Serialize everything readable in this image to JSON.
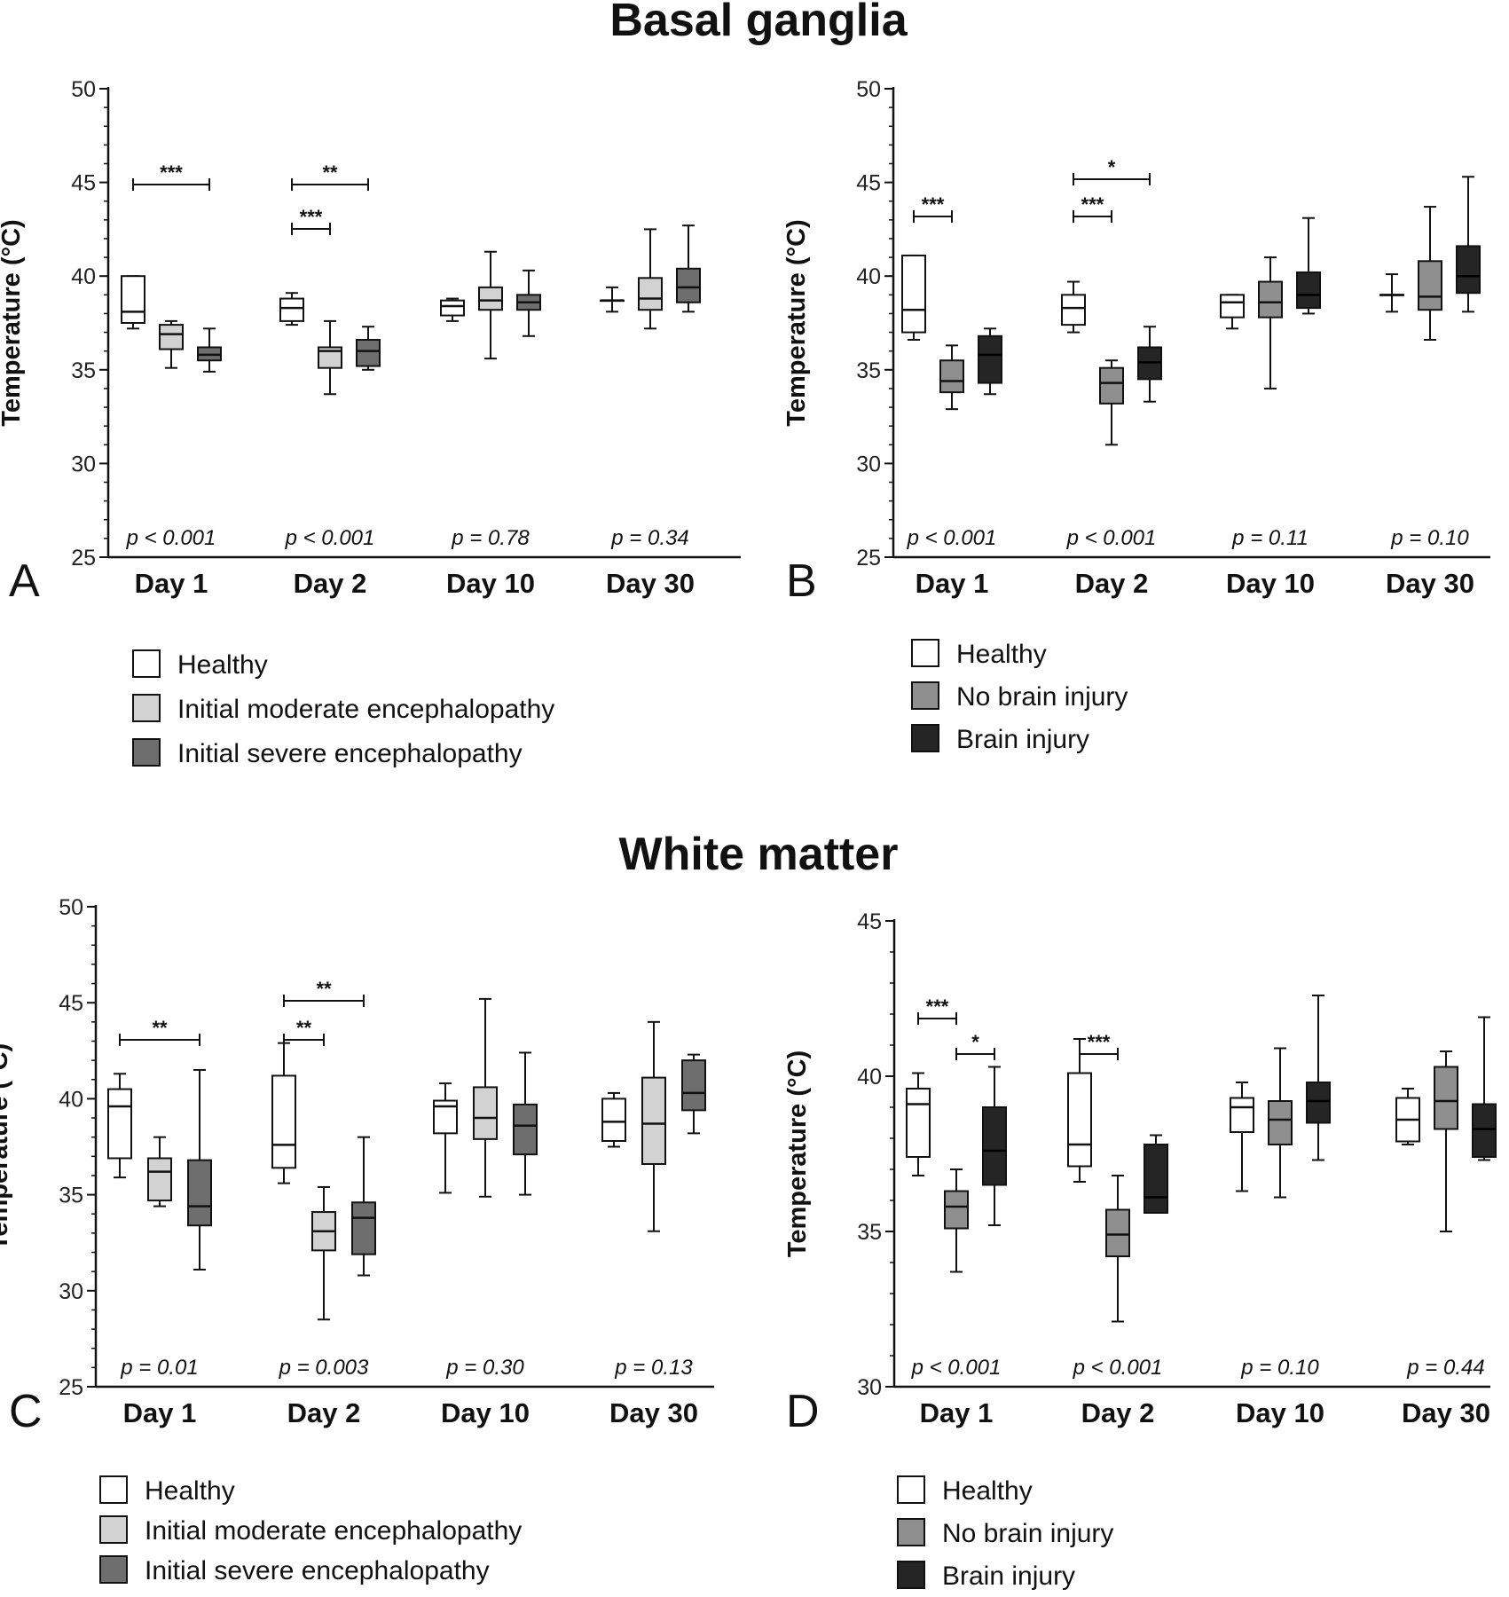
{
  "sections": [
    {
      "title": "Basal ganglia"
    },
    {
      "title": "White matter"
    }
  ],
  "colors": {
    "healthy": "#ffffff",
    "moderate": "#d2d2d2",
    "severe": "#6e6e6e",
    "no_injury": "#8f8f8f",
    "injury": "#252525",
    "stroke": "#111111"
  },
  "chart_data": [
    {
      "panel": "A",
      "type": "box",
      "ylabel": "Temperature (°C)",
      "ylim": [
        25,
        50
      ],
      "yticks": [
        25,
        30,
        35,
        40,
        45,
        50
      ],
      "categories": [
        "Day 1",
        "Day 2",
        "Day 10",
        "Day 30"
      ],
      "pvalues": [
        "p < 0.001",
        "p < 0.001",
        "p = 0.78",
        "p = 0.34"
      ],
      "legend": [
        {
          "label": "Healthy",
          "color": "#ffffff"
        },
        {
          "label": "Initial moderate encephalopathy",
          "color": "#d2d2d2"
        },
        {
          "label": "Initial severe encephalopathy",
          "color": "#6e6e6e"
        }
      ],
      "boxes": [
        [
          [
            37.2,
            37.5,
            38.1,
            40.0,
            40.0
          ],
          [
            35.1,
            36.1,
            36.9,
            37.4,
            37.6
          ],
          [
            34.9,
            35.5,
            35.8,
            36.2,
            37.2
          ]
        ],
        [
          [
            37.4,
            37.6,
            38.3,
            38.8,
            39.1
          ],
          [
            33.7,
            35.1,
            36.0,
            36.2,
            37.6
          ],
          [
            35.0,
            35.2,
            36.0,
            36.6,
            37.3
          ]
        ],
        [
          [
            37.6,
            37.9,
            38.4,
            38.7,
            38.8
          ],
          [
            35.6,
            38.2,
            38.7,
            39.4,
            41.3
          ],
          [
            36.8,
            38.2,
            38.6,
            39.0,
            40.3
          ]
        ],
        [
          [
            38.1,
            38.7,
            38.7,
            38.7,
            39.4
          ],
          [
            37.2,
            38.2,
            38.8,
            39.9,
            42.5
          ],
          [
            38.1,
            38.6,
            39.4,
            40.4,
            42.7
          ]
        ]
      ],
      "significance": [
        {
          "label": "***",
          "group": 0,
          "from": 0,
          "to": 2,
          "level": 1
        },
        {
          "label": "**",
          "group": 1,
          "from": 0,
          "to": 2,
          "level": 1
        },
        {
          "label": "***",
          "group": 1,
          "from": 0,
          "to": 1,
          "level": 0
        }
      ]
    },
    {
      "panel": "B",
      "type": "box",
      "ylabel": "Temperature (°C)",
      "ylim": [
        25,
        50
      ],
      "yticks": [
        25,
        30,
        35,
        40,
        45,
        50
      ],
      "categories": [
        "Day 1",
        "Day 2",
        "Day 10",
        "Day 30"
      ],
      "pvalues": [
        "p < 0.001",
        "p < 0.001",
        "p = 0.11",
        "p = 0.10"
      ],
      "legend": [
        {
          "label": "Healthy",
          "color": "#ffffff"
        },
        {
          "label": "No brain injury",
          "color": "#8f8f8f"
        },
        {
          "label": "Brain injury",
          "color": "#252525"
        }
      ],
      "boxes": [
        [
          [
            36.6,
            37.0,
            38.2,
            41.1,
            41.1
          ],
          [
            32.9,
            33.8,
            34.4,
            35.5,
            36.3
          ],
          [
            33.7,
            34.3,
            35.8,
            36.8,
            37.2
          ]
        ],
        [
          [
            37.0,
            37.4,
            38.3,
            39.0,
            39.7
          ],
          [
            31.0,
            33.2,
            34.3,
            35.1,
            35.5
          ],
          [
            33.3,
            34.5,
            35.4,
            36.2,
            37.3
          ]
        ],
        [
          [
            37.2,
            37.8,
            38.6,
            39.0,
            39.0
          ],
          [
            34.0,
            37.8,
            38.6,
            39.7,
            41.0
          ],
          [
            38.0,
            38.3,
            39.0,
            40.2,
            43.1
          ]
        ],
        [
          [
            38.1,
            39.0,
            39.0,
            39.0,
            40.1
          ],
          [
            36.6,
            38.2,
            38.9,
            40.8,
            43.7
          ],
          [
            38.1,
            39.1,
            40.0,
            41.6,
            45.3
          ]
        ]
      ],
      "significance": [
        {
          "label": "***",
          "group": 0,
          "from": 0,
          "to": 1,
          "level": 0
        },
        {
          "label": "*",
          "group": 1,
          "from": 0,
          "to": 2,
          "level": 1
        },
        {
          "label": "***",
          "group": 1,
          "from": 0,
          "to": 1,
          "level": 0
        }
      ]
    },
    {
      "panel": "C",
      "type": "box",
      "ylabel": "Temperature (°C)",
      "ylim": [
        25,
        50
      ],
      "yticks": [
        25,
        30,
        35,
        40,
        45,
        50
      ],
      "categories": [
        "Day 1",
        "Day 2",
        "Day 10",
        "Day 30"
      ],
      "pvalues": [
        "p = 0.01",
        "p = 0.003",
        "p = 0.30",
        "p = 0.13"
      ],
      "legend": [
        {
          "label": "Healthy",
          "color": "#ffffff"
        },
        {
          "label": "Initial moderate encephalopathy",
          "color": "#d2d2d2"
        },
        {
          "label": "Initial severe encephalopathy",
          "color": "#6e6e6e"
        }
      ],
      "boxes": [
        [
          [
            35.9,
            36.9,
            39.6,
            40.5,
            41.3
          ],
          [
            34.4,
            34.7,
            36.2,
            36.9,
            38.0
          ],
          [
            31.1,
            33.4,
            34.4,
            36.8,
            41.5
          ]
        ],
        [
          [
            35.6,
            36.4,
            37.6,
            41.2,
            42.9
          ],
          [
            28.5,
            32.1,
            33.1,
            34.1,
            35.4
          ],
          [
            30.8,
            31.9,
            33.8,
            34.6,
            38.0
          ]
        ],
        [
          [
            35.1,
            38.2,
            39.6,
            39.9,
            40.8
          ],
          [
            34.9,
            37.9,
            39.0,
            40.6,
            45.2
          ],
          [
            35.0,
            37.1,
            38.6,
            39.7,
            42.4
          ]
        ],
        [
          [
            37.5,
            37.8,
            38.8,
            40.0,
            40.3
          ],
          [
            33.1,
            36.6,
            38.7,
            41.1,
            44.0
          ],
          [
            38.2,
            39.4,
            40.3,
            42.0,
            42.3
          ]
        ]
      ],
      "significance": [
        {
          "label": "**",
          "group": 0,
          "from": 0,
          "to": 2,
          "level": 0
        },
        {
          "label": "**",
          "group": 1,
          "from": 0,
          "to": 2,
          "level": 1
        },
        {
          "label": "**",
          "group": 1,
          "from": 0,
          "to": 1,
          "level": 0
        }
      ]
    },
    {
      "panel": "D",
      "type": "box",
      "ylabel": "Temperature (°C)",
      "ylim": [
        30,
        45
      ],
      "yticks": [
        30,
        35,
        40,
        45
      ],
      "categories": [
        "Day 1",
        "Day 2",
        "Day 10",
        "Day 30"
      ],
      "pvalues": [
        "p < 0.001",
        "p < 0.001",
        "p = 0.10",
        "p = 0.44"
      ],
      "legend": [
        {
          "label": "Healthy",
          "color": "#ffffff"
        },
        {
          "label": "No brain injury",
          "color": "#8f8f8f"
        },
        {
          "label": "Brain injury",
          "color": "#252525"
        }
      ],
      "boxes": [
        [
          [
            36.8,
            37.4,
            39.1,
            39.6,
            40.1
          ],
          [
            33.7,
            35.1,
            35.8,
            36.3,
            37.0
          ],
          [
            35.2,
            36.5,
            37.6,
            39.0,
            40.3
          ]
        ],
        [
          [
            36.6,
            37.1,
            37.8,
            40.1,
            41.2
          ],
          [
            32.1,
            34.2,
            34.9,
            35.7,
            36.8
          ],
          [
            35.6,
            35.6,
            36.1,
            37.8,
            38.1
          ]
        ],
        [
          [
            36.3,
            38.2,
            39.0,
            39.3,
            39.8
          ],
          [
            36.1,
            37.8,
            38.6,
            39.2,
            40.9
          ],
          [
            37.3,
            38.5,
            39.2,
            39.8,
            42.6
          ]
        ],
        [
          [
            37.8,
            37.9,
            38.6,
            39.3,
            39.6
          ],
          [
            35.0,
            38.3,
            39.2,
            40.3,
            40.8
          ],
          [
            37.3,
            37.4,
            38.3,
            39.1,
            41.9
          ]
        ]
      ],
      "significance": [
        {
          "label": "***",
          "group": 0,
          "from": 0,
          "to": 1,
          "level": 1
        },
        {
          "label": "*",
          "group": 0,
          "from": 1,
          "to": 2,
          "level": 0
        },
        {
          "label": "***",
          "group": 1,
          "from": 0,
          "to": 1,
          "level": 0
        }
      ]
    }
  ]
}
